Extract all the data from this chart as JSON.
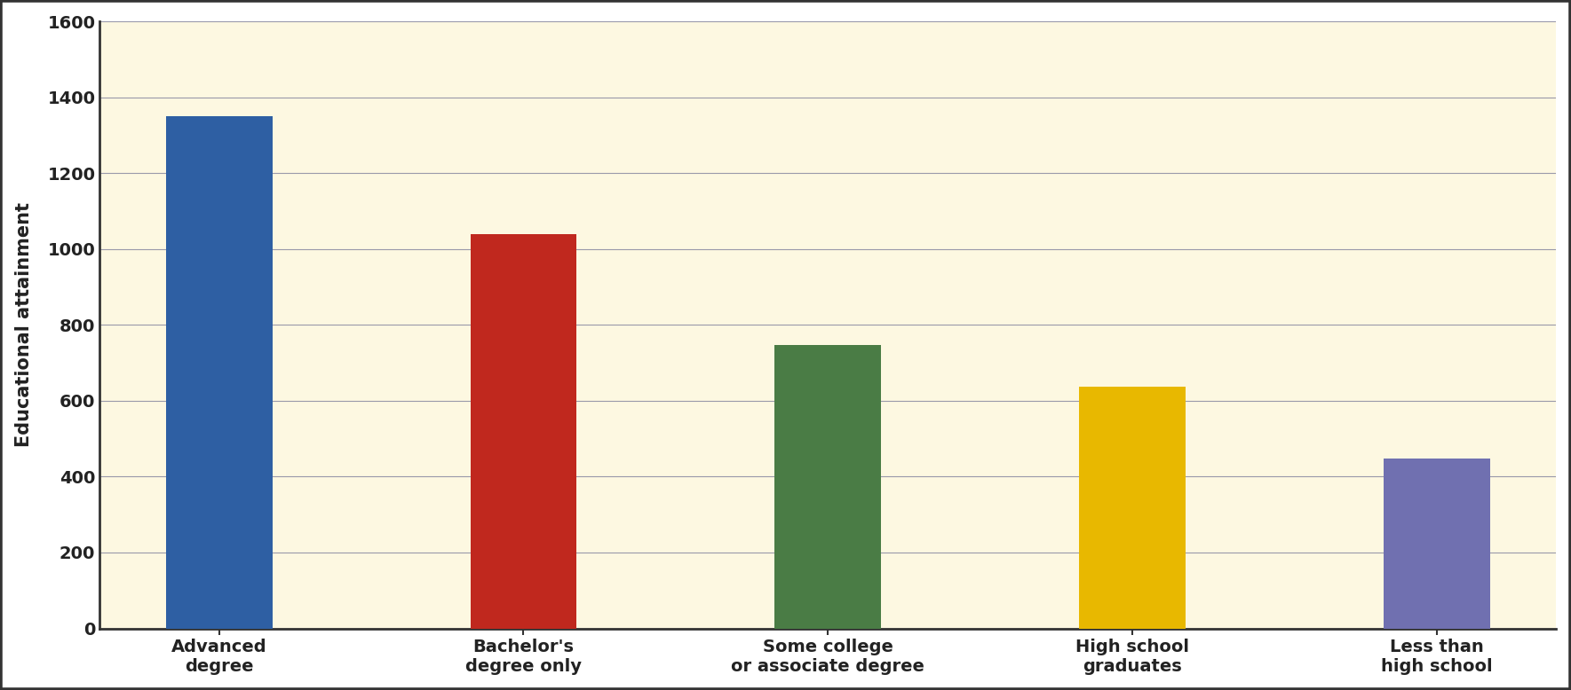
{
  "categories": [
    "Advanced\ndegree",
    "Bachelor's\ndegree only",
    "Some college\nor associate degree",
    "High school\ngraduates",
    "Less than\nhigh school"
  ],
  "values": [
    1350,
    1040,
    748,
    638,
    448
  ],
  "bar_colors": [
    "#2e5fa3",
    "#c0281e",
    "#4a7c45",
    "#e8b800",
    "#7070b0"
  ],
  "ylabel": "Educational attainment",
  "ylim": [
    0,
    1600
  ],
  "yticks": [
    0,
    200,
    400,
    600,
    800,
    1000,
    1200,
    1400,
    1600
  ],
  "background_color": "#fdf8e1",
  "outer_background": "#ffffff",
  "grid_color": "#9999aa",
  "ylabel_fontsize": 15,
  "tick_fontsize": 14,
  "bar_width": 0.35,
  "border_color": "#333333",
  "spine_color": "#333333"
}
